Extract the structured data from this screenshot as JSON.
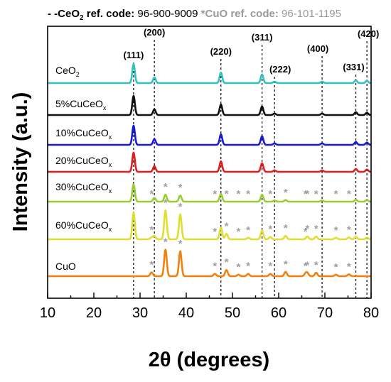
{
  "header": {
    "ceo2_prefix": "- -CeO",
    "ceo2_sub": "2",
    "ceo2_ref": " ref. code: ",
    "ceo2_code": "96-900-9009",
    "cuo_label": " *CuO ref. code: ",
    "cuo_code": "96-101-1195"
  },
  "chart_data": {
    "type": "line",
    "xlabel": "2θ (degrees)",
    "ylabel": "Intensity (a.u.)",
    "xlim": [
      10,
      80
    ],
    "xticks": [
      10,
      20,
      30,
      40,
      50,
      60,
      70,
      80
    ],
    "grid": false,
    "ceo2_reflections": [
      {
        "hkl": "(111)",
        "x": 28.6
      },
      {
        "hkl": "(200)",
        "x": 33.1
      },
      {
        "hkl": "(220)",
        "x": 47.5
      },
      {
        "hkl": "(311)",
        "x": 56.4
      },
      {
        "hkl": "(222)",
        "x": 59.1
      },
      {
        "hkl": "(400)",
        "x": 69.4
      },
      {
        "hkl": "(331)",
        "x": 76.7
      },
      {
        "hkl": "(420)",
        "x": 79.1
      }
    ],
    "cuo_marker_positions": [
      32.5,
      35.5,
      38.7,
      46.2,
      48.7,
      51.3,
      53.4,
      58.2,
      61.5,
      65.8,
      66.2,
      68.1,
      72.4,
      75.2
    ],
    "series": [
      {
        "name": "CeO2",
        "label_main": "CeO",
        "label_sub": "2",
        "color": "#33c2c2",
        "peaks": [
          [
            28.6,
            1.0
          ],
          [
            33.1,
            0.3
          ],
          [
            47.5,
            0.55
          ],
          [
            56.4,
            0.45
          ],
          [
            59.1,
            0.08
          ],
          [
            69.4,
            0.08
          ],
          [
            76.7,
            0.15
          ],
          [
            79.1,
            0.12
          ]
        ],
        "cuo_markers": false
      },
      {
        "name": "5%CuCeOx",
        "label_main": "5%CuCeO",
        "label_sub": "x",
        "color": "#111111",
        "peaks": [
          [
            28.6,
            1.0
          ],
          [
            33.1,
            0.3
          ],
          [
            47.5,
            0.55
          ],
          [
            56.4,
            0.45
          ],
          [
            59.1,
            0.08
          ],
          [
            69.4,
            0.08
          ],
          [
            76.7,
            0.15
          ],
          [
            79.1,
            0.12
          ]
        ],
        "cuo_markers": false
      },
      {
        "name": "10%CuCeOx",
        "label_main": "10%CuCeO",
        "label_sub": "x",
        "color": "#1a1ad6",
        "peaks": [
          [
            28.6,
            1.0
          ],
          [
            33.1,
            0.3
          ],
          [
            47.5,
            0.55
          ],
          [
            56.4,
            0.45
          ],
          [
            59.1,
            0.08
          ],
          [
            69.4,
            0.08
          ],
          [
            76.7,
            0.15
          ],
          [
            79.1,
            0.12
          ]
        ],
        "cuo_markers": false
      },
      {
        "name": "20%CuCeOx",
        "label_main": "20%CuCeO",
        "label_sub": "x",
        "color": "#e02020",
        "peaks": [
          [
            28.6,
            1.0
          ],
          [
            33.1,
            0.3
          ],
          [
            47.5,
            0.55
          ],
          [
            56.4,
            0.45
          ],
          [
            59.1,
            0.08
          ],
          [
            69.4,
            0.08
          ],
          [
            76.7,
            0.15
          ],
          [
            79.1,
            0.12
          ]
        ],
        "cuo_markers": false
      },
      {
        "name": "30%CuCeOx",
        "label_main": "30%CuCeO",
        "label_sub": "x",
        "color": "#9acd32",
        "peaks": [
          [
            28.6,
            1.1
          ],
          [
            33.1,
            0.25
          ],
          [
            35.5,
            0.45
          ],
          [
            38.7,
            0.4
          ],
          [
            47.5,
            0.5
          ],
          [
            56.4,
            0.45
          ],
          [
            59.1,
            0.08
          ],
          [
            61.5,
            0.1
          ],
          [
            69.4,
            0.08
          ],
          [
            76.7,
            0.12
          ],
          [
            79.1,
            0.1
          ]
        ],
        "cuo_markers": true
      },
      {
        "name": "60%CuCeOx",
        "label_main": "60%CuCeO",
        "label_sub": "x",
        "color": "#dede33",
        "peaks": [
          [
            28.6,
            1.7
          ],
          [
            32.5,
            0.12
          ],
          [
            33.1,
            0.2
          ],
          [
            35.5,
            1.85
          ],
          [
            38.7,
            1.6
          ],
          [
            47.5,
            0.75
          ],
          [
            48.7,
            0.35
          ],
          [
            53.4,
            0.1
          ],
          [
            56.4,
            0.55
          ],
          [
            58.2,
            0.15
          ],
          [
            61.5,
            0.22
          ],
          [
            66.2,
            0.18
          ],
          [
            68.1,
            0.18
          ],
          [
            72.4,
            0.1
          ],
          [
            75.2,
            0.12
          ],
          [
            76.7,
            0.15
          ],
          [
            79.1,
            0.1
          ]
        ],
        "cuo_markers": true
      },
      {
        "name": "CuO",
        "label_main": "CuO",
        "label_sub": "",
        "color": "#f08010",
        "peaks": [
          [
            32.5,
            0.25
          ],
          [
            35.5,
            1.7
          ],
          [
            38.7,
            1.6
          ],
          [
            46.2,
            0.15
          ],
          [
            48.7,
            0.4
          ],
          [
            51.3,
            0.1
          ],
          [
            53.4,
            0.15
          ],
          [
            58.2,
            0.15
          ],
          [
            61.5,
            0.28
          ],
          [
            65.8,
            0.15
          ],
          [
            66.2,
            0.2
          ],
          [
            68.1,
            0.22
          ],
          [
            72.4,
            0.1
          ],
          [
            75.2,
            0.12
          ]
        ],
        "cuo_markers": true
      }
    ]
  }
}
